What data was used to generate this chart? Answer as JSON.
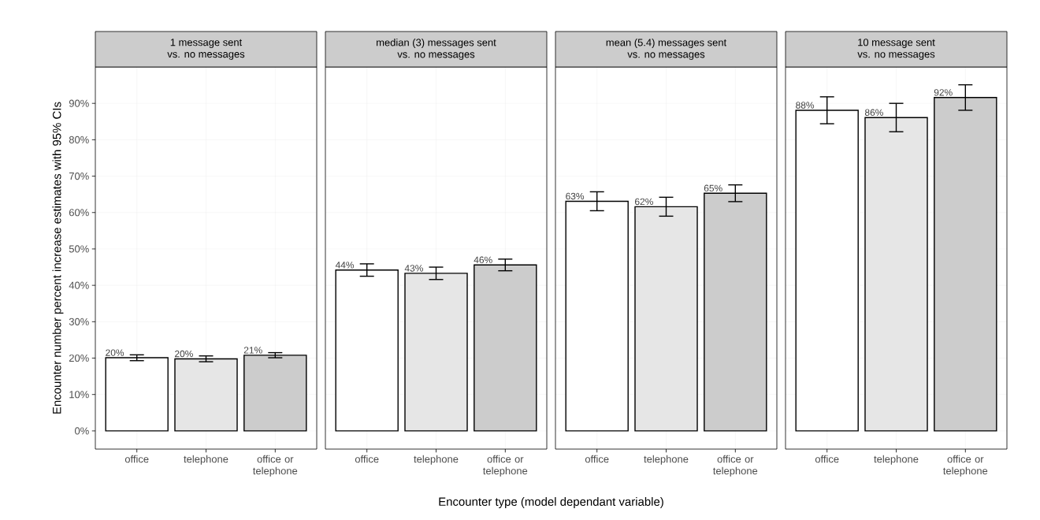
{
  "chart_data": [
    {
      "type": "bar",
      "title": "1 message sent",
      "subtitle": "vs. no messages",
      "ylabel": "Encounter number percent increase estimates with 95% CIs",
      "categories": [
        "office",
        "telephone",
        "office or telephone"
      ],
      "values": [
        20.1,
        19.8,
        20.8
      ],
      "errors": [
        0.8,
        0.8,
        0.7
      ],
      "value_labels": [
        "20%",
        "20%",
        "21%"
      ],
      "colors": [
        "#ffffff",
        "#e6e6e6",
        "#cccccc"
      ],
      "ylim": [
        -5,
        100
      ],
      "yticks": [
        {
          "value": 0,
          "label": "0%"
        },
        {
          "value": 10,
          "label": "10%"
        },
        {
          "value": 20,
          "label": "20%"
        },
        {
          "value": 30,
          "label": "30%"
        },
        {
          "value": 40,
          "label": "40%"
        },
        {
          "value": 50,
          "label": "50%"
        },
        {
          "value": 60,
          "label": "60%"
        },
        {
          "value": 70,
          "label": "70%"
        },
        {
          "value": 80,
          "label": "80%"
        },
        {
          "value": 90,
          "label": "90%"
        }
      ],
      "grid": true
    },
    {
      "type": "bar",
      "title": "median (3) messages sent",
      "subtitle": "vs. no messages",
      "xlabel": "Encounter type (model dependant variable)",
      "categories": [
        "office",
        "telephone",
        "office or telephone"
      ],
      "values": [
        44.2,
        43.3,
        45.6
      ],
      "errors": [
        1.7,
        1.7,
        1.6
      ],
      "value_labels": [
        "44%",
        "43%",
        "46%"
      ],
      "colors": [
        "#ffffff",
        "#e6e6e6",
        "#cccccc"
      ],
      "ylim": [
        -5,
        100
      ],
      "yticks": [
        {
          "value": 0,
          "label": null
        },
        {
          "value": 10,
          "label": null
        },
        {
          "value": 20,
          "label": null
        },
        {
          "value": 30,
          "label": null
        },
        {
          "value": 40,
          "label": null
        },
        {
          "value": 50,
          "label": null
        },
        {
          "value": 60,
          "label": null
        },
        {
          "value": 70,
          "label": null
        },
        {
          "value": 80,
          "label": null
        },
        {
          "value": 90,
          "label": null
        }
      ],
      "grid": true,
      "tick_labels": "x"
    },
    {
      "type": "bar",
      "title": "mean (5.4) messages sent",
      "subtitle": "vs. no messages",
      "categories": [
        "office",
        "telephone",
        "office or telephone"
      ],
      "values": [
        63.1,
        61.6,
        65.3
      ],
      "errors": [
        2.6,
        2.6,
        2.3
      ],
      "value_labels": [
        "63%",
        "62%",
        "65%"
      ],
      "colors": [
        "#ffffff",
        "#e6e6e6",
        "#cccccc"
      ],
      "ylim": [
        -5,
        100
      ],
      "yticks": [
        {
          "value": 0,
          "label": null
        },
        {
          "value": 10,
          "label": null
        },
        {
          "value": 20,
          "label": null
        },
        {
          "value": 30,
          "label": null
        },
        {
          "value": 40,
          "label": null
        },
        {
          "value": 50,
          "label": null
        },
        {
          "value": 60,
          "label": null
        },
        {
          "value": 70,
          "label": null
        },
        {
          "value": 80,
          "label": null
        },
        {
          "value": 90,
          "label": null
        }
      ],
      "grid": true,
      "tick_labels": "x"
    },
    {
      "type": "bar",
      "title": "10 message sent",
      "subtitle": "vs. no messages",
      "categories": [
        "office",
        "telephone",
        "office or telephone"
      ],
      "values": [
        88.1,
        86.1,
        91.6
      ],
      "errors": [
        3.7,
        3.9,
        3.5
      ],
      "value_labels": [
        "88%",
        "86%",
        "92%"
      ],
      "colors": [
        "#ffffff",
        "#e6e6e6",
        "#cccccc"
      ],
      "ylim": [
        -5,
        100
      ],
      "yticks": [
        {
          "value": 0,
          "label": null
        },
        {
          "value": 10,
          "label": null
        },
        {
          "value": 20,
          "label": null
        },
        {
          "value": 30,
          "label": null
        },
        {
          "value": 40,
          "label": null
        },
        {
          "value": 50,
          "label": null
        },
        {
          "value": 60,
          "label": null
        },
        {
          "value": 70,
          "label": null
        },
        {
          "value": 80,
          "label": null
        },
        {
          "value": 90,
          "label": null
        }
      ],
      "grid": true,
      "tick_labels": "x"
    }
  ]
}
